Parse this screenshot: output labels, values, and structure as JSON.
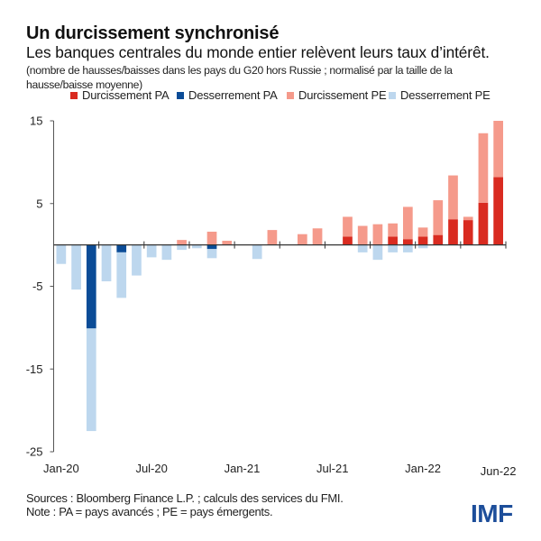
{
  "chart_data": {
    "type": "bar",
    "stacked": true,
    "title": "Un durcissement synchronisé",
    "subtitle": "Les banques centrales du monde entier relèvent leurs taux d’intérêt.",
    "note": "(nombre de hausses/baisses dans les pays du G20 hors Russie ; normalisé par la taille de la hausse/baisse moyenne)",
    "xlabel": "",
    "ylabel": "",
    "ylim": [
      -25,
      15
    ],
    "yticks": [
      15,
      5,
      -5,
      -15,
      -25
    ],
    "grid": false,
    "legend_position": "top",
    "categories": [
      "Jan-20",
      "Feb-20",
      "Mar-20",
      "Apr-20",
      "May-20",
      "Jun-20",
      "Jul-20",
      "Aug-20",
      "Sep-20",
      "Oct-20",
      "Nov-20",
      "Dec-20",
      "Jan-21",
      "Feb-21",
      "Mar-21",
      "Apr-21",
      "May-21",
      "Jun-21",
      "Jul-21",
      "Aug-21",
      "Sep-21",
      "Oct-21",
      "Nov-21",
      "Dec-21",
      "Jan-22",
      "Feb-22",
      "Mar-22",
      "Apr-22",
      "May-22",
      "Jun-22"
    ],
    "xtick_labels": [
      {
        "index": 0,
        "label": "Jan-20"
      },
      {
        "index": 6,
        "label": "Jul-20"
      },
      {
        "index": 12,
        "label": "Jan-21"
      },
      {
        "index": 18,
        "label": "Jul-21"
      },
      {
        "index": 24,
        "label": "Jan-22"
      },
      {
        "index": 29,
        "label": "Jun-22"
      }
    ],
    "series": [
      {
        "name": "Durcissement PA",
        "color": "#d92b20",
        "direction": "up",
        "values": [
          0,
          0,
          0,
          0,
          0,
          0,
          0,
          0,
          0,
          0,
          0,
          0,
          0,
          0,
          0,
          0,
          0,
          0,
          0,
          1.0,
          0,
          0,
          1.0,
          0.7,
          1.0,
          1.2,
          3.1,
          3.0,
          5.1,
          8.2
        ]
      },
      {
        "name": "Desserrement PA",
        "color": "#0b4c97",
        "direction": "down",
        "values": [
          0,
          0,
          -10.1,
          0,
          -0.9,
          0,
          0,
          0,
          0,
          0,
          -0.5,
          0,
          0,
          0,
          0,
          0,
          0,
          0,
          0,
          0,
          0,
          0,
          0,
          0,
          0,
          0,
          0,
          0,
          0,
          0
        ]
      },
      {
        "name": "Durcissement PE",
        "color": "#f59a8b",
        "direction": "up",
        "values": [
          0,
          0,
          0,
          0,
          0,
          0,
          0,
          0,
          0.6,
          0,
          1.6,
          0.5,
          0,
          0,
          1.8,
          0,
          1.3,
          2.0,
          0,
          2.4,
          2.3,
          2.5,
          1.6,
          3.9,
          1.1,
          4.2,
          5.3,
          0.4,
          8.4,
          6.8
        ]
      },
      {
        "name": "Desserrement PE",
        "color": "#bdd7ee",
        "direction": "down",
        "values": [
          -2.3,
          -5.4,
          -12.4,
          -4.4,
          -5.5,
          -3.7,
          -1.5,
          -1.8,
          -0.6,
          -0.4,
          -1.1,
          0,
          0,
          -1.7,
          0,
          0,
          0,
          0,
          0,
          0,
          -0.9,
          -1.8,
          -0.9,
          -0.9,
          -0.4,
          0,
          0,
          0,
          0,
          0
        ]
      }
    ]
  },
  "header": {
    "title": "Un durcissement synchronisé",
    "subtitle": "Les banques centrales du monde entier relèvent leurs taux d’intérêt.",
    "note": "(nombre de hausses/baisses dans les pays du G20 hors Russie ; normalisé par la taille de la hausse/baisse moyenne)"
  },
  "legend": [
    {
      "label": "Durcissement PA",
      "color": "#d92b20"
    },
    {
      "label": "Desserrement PA",
      "color": "#0b4c97"
    },
    {
      "label": "Durcissement PE",
      "color": "#f59a8b"
    },
    {
      "label": "Desserrement PE",
      "color": "#bdd7ee"
    }
  ],
  "footer": {
    "sources": "Sources : Bloomberg Finance L.P. ; calculs des services du FMI.",
    "note": "Note : PA = pays avancés ; PE = pays émergents.",
    "logo": "IMF",
    "logo_color": "#1d4e9a"
  }
}
